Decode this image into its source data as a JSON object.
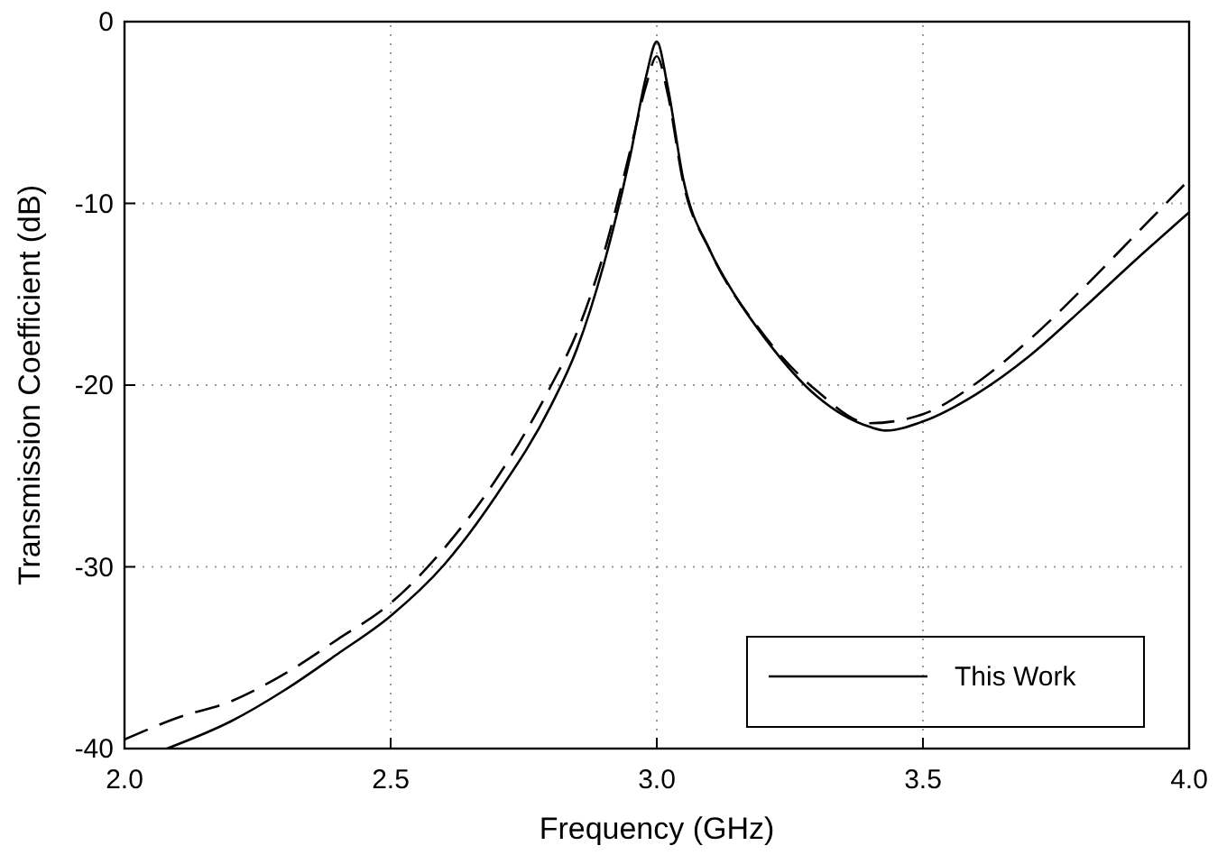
{
  "chart_data": {
    "type": "line",
    "xlabel": "Frequency (GHz)",
    "ylabel": "Transmission Coefficient (dB)",
    "xlim": [
      2.0,
      4.0
    ],
    "xticks": [
      {
        "value": 2,
        "label": "2.0"
      },
      {
        "value": 2.5,
        "label": "2.5"
      },
      {
        "value": 3,
        "label": "3.0"
      },
      {
        "value": 3.5,
        "label": "3.5"
      },
      {
        "value": 4,
        "label": "4.0"
      }
    ],
    "ylim": [
      -40,
      0
    ],
    "yticks": [
      -40,
      -30,
      -20,
      -10,
      0
    ],
    "grid": true,
    "legend": "bottom right",
    "series": [
      {
        "name": "This Work",
        "color": "#000000",
        "line_style": "solid",
        "x": [
          2.08,
          2.2,
          2.3,
          2.4,
          2.5,
          2.6,
          2.7,
          2.8,
          2.85,
          2.9,
          2.95,
          2.98,
          3.0,
          3.02,
          3.05,
          3.1,
          3.15,
          3.2,
          3.3,
          3.4,
          3.43,
          3.5,
          3.6,
          3.7,
          3.8,
          3.9,
          4.0
        ],
        "values": [
          -40,
          -38.5,
          -36.8,
          -34.8,
          -32.7,
          -29.9,
          -26,
          -21.2,
          -18,
          -13.4,
          -7.4,
          -3,
          -1.1,
          -3.5,
          -8.7,
          -12.6,
          -15.2,
          -17.3,
          -20.6,
          -22.3,
          -22.5,
          -22,
          -20.5,
          -18.4,
          -15.8,
          -13.1,
          -10.5
        ]
      },
      {
        "color": "#000000",
        "line_style": "dashed",
        "x": [
          2.0,
          2.1,
          2.2,
          2.3,
          2.4,
          2.5,
          2.6,
          2.7,
          2.8,
          2.85,
          2.9,
          2.95,
          2.98,
          3.0,
          3.02,
          3.05,
          3.1,
          3.2,
          3.3,
          3.4,
          3.5,
          3.6,
          3.7,
          3.8,
          3.9,
          4.0
        ],
        "values": [
          -39.5,
          -38.3,
          -37.4,
          -35.9,
          -34,
          -32,
          -29,
          -25.1,
          -20.1,
          -17.1,
          -12.8,
          -7.1,
          -3.5,
          -1.9,
          -3.9,
          -8.9,
          -12.6,
          -17.2,
          -20.3,
          -22.1,
          -21.6,
          -19.9,
          -17.5,
          -14.7,
          -11.7,
          -8.7
        ]
      }
    ]
  }
}
